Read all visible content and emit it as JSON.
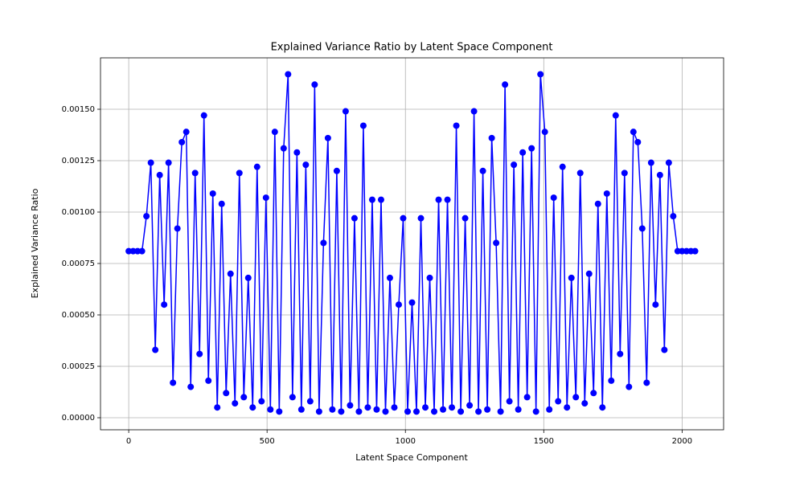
{
  "chart_data": {
    "type": "line",
    "title": "Explained Variance Ratio by Latent Space Component",
    "xlabel": "Latent Space Component",
    "ylabel": "Explained Variance Ratio",
    "grid": true,
    "xlim": [
      -102,
      2150
    ],
    "ylim": [
      -5.86e-05,
      0.00175
    ],
    "xticks": [
      0,
      500,
      1000,
      1500,
      2000
    ],
    "yticks": [
      {
        "value": 0,
        "label": "0.00000"
      },
      {
        "value": 0.00025,
        "label": "0.00025"
      },
      {
        "value": 0.0005,
        "label": "0.00050"
      },
      {
        "value": 0.00075,
        "label": "0.00075"
      },
      {
        "value": 0.001,
        "label": "0.00100"
      },
      {
        "value": 0.00125,
        "label": "0.00125"
      },
      {
        "value": 0.0015,
        "label": "0.00150"
      }
    ],
    "x": [
      0,
      16,
      32,
      48,
      64,
      80,
      96,
      112,
      128,
      144,
      160,
      176,
      192,
      208,
      224,
      240,
      256,
      272,
      288,
      304,
      320,
      336,
      352,
      368,
      384,
      400,
      416,
      432,
      448,
      464,
      480,
      496,
      512,
      528,
      544,
      560,
      576,
      592,
      608,
      624,
      640,
      656,
      672,
      688,
      704,
      720,
      736,
      752,
      768,
      784,
      800,
      816,
      832,
      848,
      864,
      880,
      896,
      912,
      928,
      944,
      960,
      976,
      992,
      1008,
      1024,
      1040,
      1056,
      1072,
      1088,
      1104,
      1120,
      1136,
      1152,
      1168,
      1184,
      1200,
      1216,
      1232,
      1248,
      1264,
      1280,
      1296,
      1312,
      1328,
      1344,
      1360,
      1376,
      1392,
      1408,
      1424,
      1440,
      1456,
      1472,
      1488,
      1504,
      1520,
      1536,
      1552,
      1568,
      1584,
      1600,
      1616,
      1632,
      1648,
      1664,
      1680,
      1696,
      1712,
      1728,
      1744,
      1760,
      1776,
      1792,
      1808,
      1824,
      1840,
      1856,
      1872,
      1888,
      1904,
      1920,
      1936,
      1952,
      1968,
      1984,
      2000,
      2016,
      2032,
      2047
    ],
    "series": [
      {
        "color": "#0000ff",
        "values": [
          0.00081,
          0.00081,
          0.00081,
          0.00081,
          0.00098,
          0.00124,
          0.00033,
          0.00118,
          0.00055,
          0.00124,
          0.00017,
          0.00092,
          0.00134,
          0.00139,
          0.00015,
          0.00119,
          0.00031,
          0.00147,
          0.00018,
          0.00109,
          5e-05,
          0.00104,
          0.00012,
          0.0007,
          7e-05,
          0.00119,
          0.0001,
          0.00068,
          5e-05,
          0.00122,
          8e-05,
          0.00107,
          4e-05,
          0.00139,
          3e-05,
          0.00131,
          0.00167,
          0.0001,
          0.00129,
          4e-05,
          0.00123,
          8e-05,
          0.00162,
          3e-05,
          0.00085,
          0.00136,
          4e-05,
          0.0012,
          3e-05,
          0.00149,
          6e-05,
          0.00097,
          3e-05,
          0.00142,
          5e-05,
          0.00106,
          4e-05,
          0.00106,
          3e-05,
          0.00068,
          5e-05,
          0.00055,
          0.00097,
          3e-05,
          0.00056,
          3e-05,
          0.00097,
          5e-05,
          0.00068,
          3e-05,
          0.00106,
          4e-05,
          0.00106,
          5e-05,
          0.00142,
          3e-05,
          0.00097,
          6e-05,
          0.00149,
          3e-05,
          0.0012,
          4e-05,
          0.00136,
          0.00085,
          3e-05,
          0.00162,
          8e-05,
          0.00123,
          4e-05,
          0.00129,
          0.0001,
          0.00131,
          3e-05,
          0.00167,
          0.00139,
          4e-05,
          0.00107,
          8e-05,
          0.00122,
          5e-05,
          0.00068,
          0.0001,
          0.00119,
          7e-05,
          0.0007,
          0.00012,
          0.00104,
          5e-05,
          0.00109,
          0.00018,
          0.00147,
          0.00031,
          0.00119,
          0.00015,
          0.00139,
          0.00134,
          0.00092,
          0.00017,
          0.00124,
          0.00055,
          0.00118,
          0.00033,
          0.00124,
          0.00098,
          0.00081,
          0.00081,
          0.00081,
          0.00081,
          0.00081
        ]
      }
    ]
  }
}
